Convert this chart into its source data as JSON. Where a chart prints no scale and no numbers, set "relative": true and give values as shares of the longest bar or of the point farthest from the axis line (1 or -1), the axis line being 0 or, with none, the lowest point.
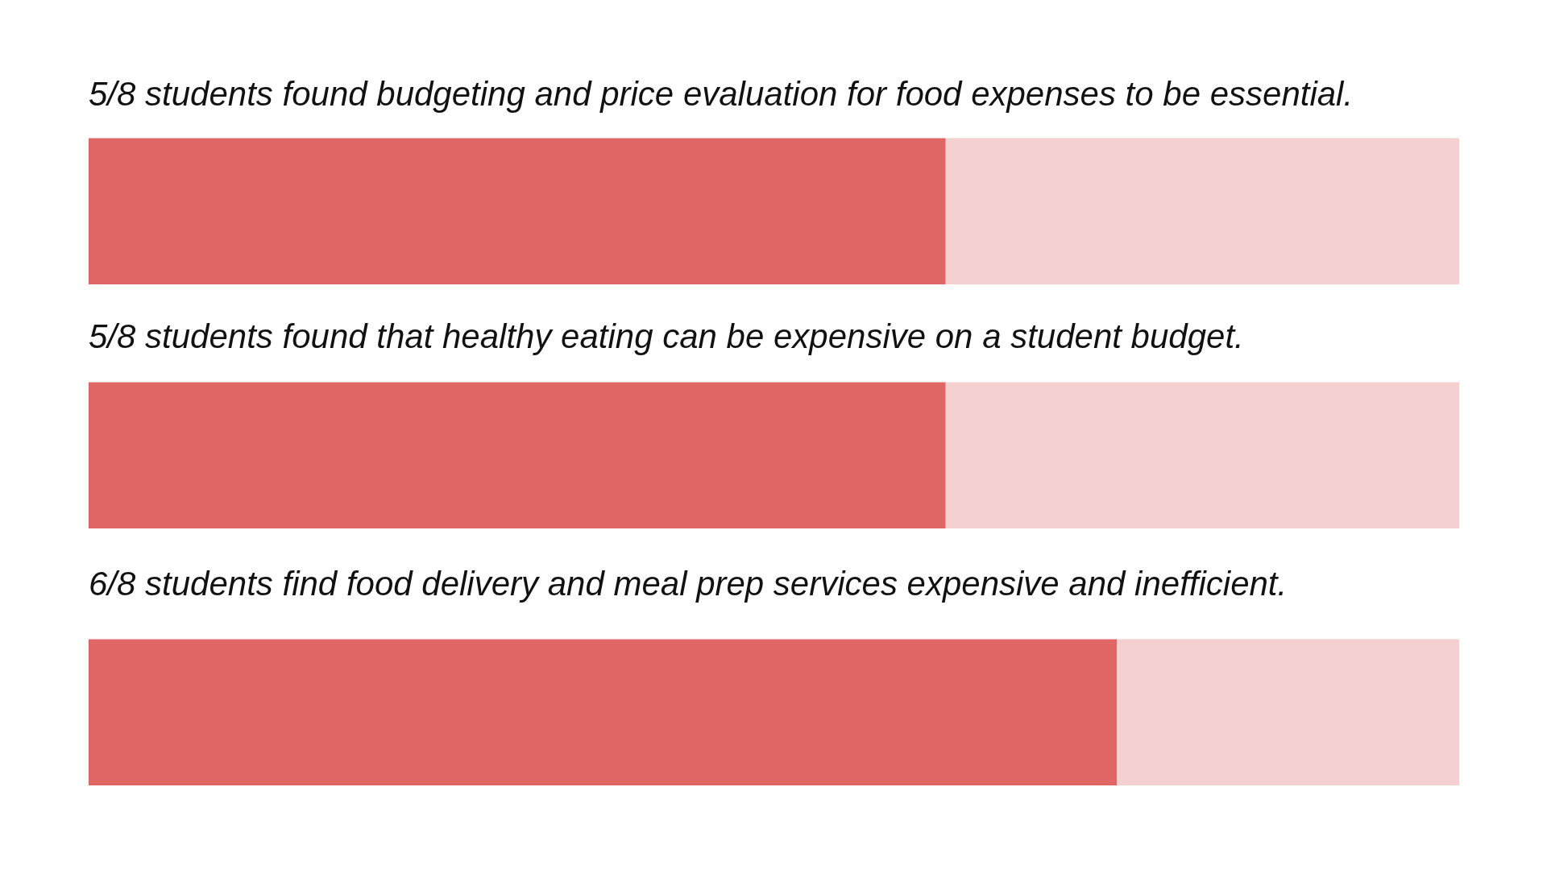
{
  "chart_data": [
    {
      "type": "bar",
      "title": "5/8 students found budgeting and price evaluation for food expenses to be essential.",
      "orientation": "horizontal",
      "stacked": true,
      "relative": true,
      "categories": [
        null
      ],
      "series": [
        {
          "color": "#e06666",
          "values": [
            0.625
          ]
        },
        {
          "color": "#f4d0d0",
          "values": [
            0.375
          ]
        }
      ],
      "tick_labels": false
    },
    {
      "type": "bar",
      "title": "5/8 students found that healthy eating can be expensive on a student budget.",
      "orientation": "horizontal",
      "stacked": true,
      "relative": true,
      "categories": [
        null
      ],
      "series": [
        {
          "color": "#e06666",
          "values": [
            0.625
          ]
        },
        {
          "color": "#f4d0d0",
          "values": [
            0.375
          ]
        }
      ],
      "tick_labels": false
    },
    {
      "type": "bar",
      "title": "6/8 students find food delivery and meal prep services expensive and inefficient.",
      "orientation": "horizontal",
      "stacked": true,
      "relative": true,
      "categories": [
        null
      ],
      "series": [
        {
          "color": "#e06666",
          "values": [
            0.75
          ]
        },
        {
          "color": "#f4d0d0",
          "values": [
            0.25
          ]
        }
      ],
      "tick_labels": false
    }
  ]
}
